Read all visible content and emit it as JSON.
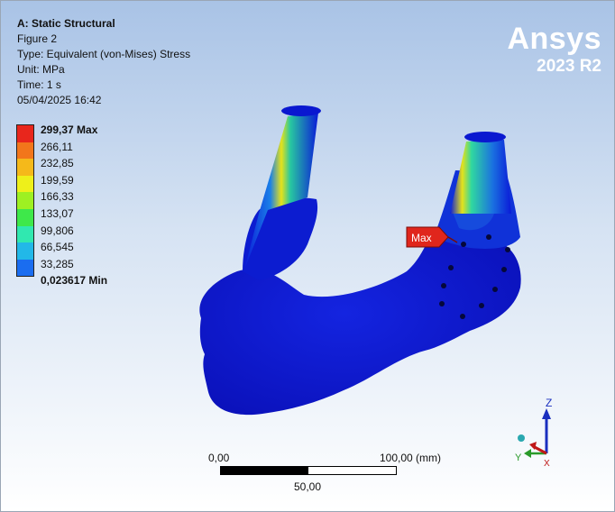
{
  "header": {
    "title": "A: Static Structural",
    "figure": "Figure 2",
    "type": "Type: Equivalent (von-Mises) Stress",
    "unit": "Unit: MPa",
    "time": "Time: 1 s",
    "date": "05/04/2025 16:42"
  },
  "brand": {
    "name": "Ansys",
    "version": "2023 R2"
  },
  "legend": {
    "labels": [
      "299,37 Max",
      "266,11",
      "232,85",
      "199,59",
      "166,33",
      "133,07",
      "99,806",
      "66,545",
      "33,285",
      "0,023617 Min"
    ],
    "colors": [
      "#e8261c",
      "#f2761b",
      "#f5b91a",
      "#eef01a",
      "#9ef022",
      "#3ee84a",
      "#30e8b0",
      "#22b8e8",
      "#1a6df0",
      "#0a14d8"
    ]
  },
  "probe": {
    "label": "Max"
  },
  "scale": {
    "left": "0,00",
    "right": "100,00 (mm)",
    "mid": "50,00"
  },
  "triad": {
    "z": "Z",
    "y": "Y",
    "x": "X"
  }
}
